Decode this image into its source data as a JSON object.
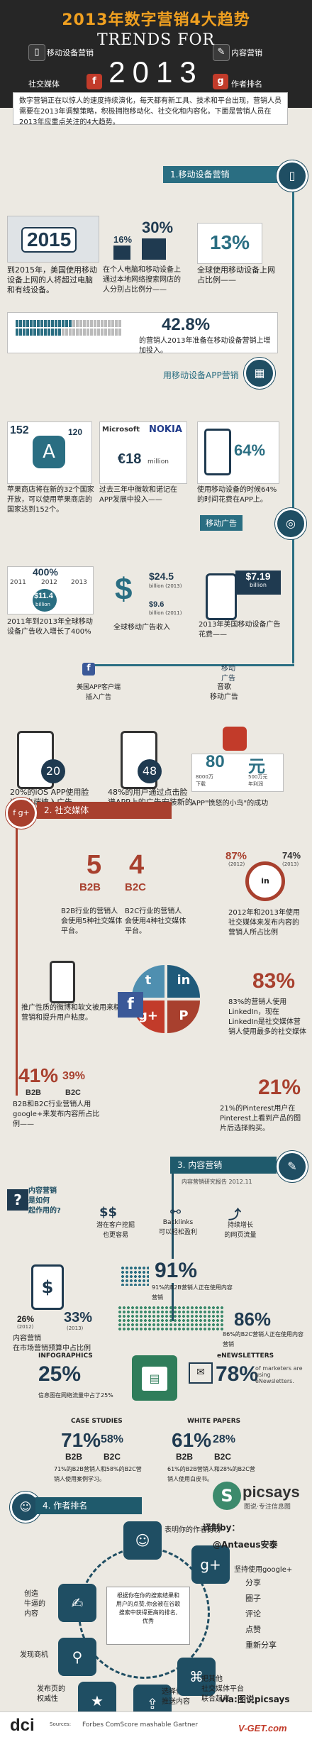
{
  "header": {
    "title_cn": "2013年数字营销4大趋势",
    "title_en": "TRENDS FOR",
    "year": "2013",
    "legend": {
      "mobile": "移动设备营销",
      "content": "内容营销",
      "social": "社交媒体",
      "author": "作者排名"
    }
  },
  "intro": "数字营销正在以惊人的速度持续演化，每天都有新工具、技术和平台出现，营销人员需要在2013年调整策略，积极拥抱移动化、社交化和内容化。下面是营销人员在2013年应重点关注的4大趋势。",
  "section1": {
    "bar": "1.移动设备营销",
    "stat_2015": "2015",
    "cap_2015": "到2015年，美国使用移动设备上网的人将超过电脑和有线设备。",
    "pct16": "16%",
    "pct30": "30%",
    "cap_30": "在个人电脑和移动设备上通过本地网络搜索网店的人分别占比例分——",
    "pct13": "13%",
    "cap_13": "全球使用移动设备上网占比例——",
    "pct428": "42.8%",
    "cap_428": "的营销人2013年准备在移动设备营销上增加投入。",
    "app_bar": "用移动设备APP营销",
    "apple_152": "152",
    "apple_120": "120",
    "cap_apple": "苹果商店将在新的32个国家开放，可以使用苹果商店的国家达到152个。",
    "ms": "Microsoft",
    "nokia": "NOKIA",
    "ms_value": "€18",
    "ms_unit": "million",
    "cap_ms": "过去三年中微软和诺记在APP发展中投入——",
    "pct64": "64%",
    "cap_64": "使用移动设备的时候64%的时间花费在APP上。",
    "ad_bar": "移动广告",
    "pct400": "400%",
    "y2011": "2011",
    "y2012": "2012",
    "y2013": "2013",
    "ad_val": "$11.4",
    "ad_unit": "billion",
    "cap_400": "2011年到2013年全球移动设备广告收入增长了400%",
    "usd_245": "$24.5",
    "usd_245_note": "billion (2013)",
    "usd_96": "$9.6",
    "usd_96_note": "billion (2011)",
    "cap_usd": "全球移动广告收入",
    "usd_719": "$7.19",
    "usd_719_unit": "billion",
    "cap_719": "2013年美国移动设备广告花费——",
    "ad_label": "移动\n广告",
    "ad_sub": "音歌\n移动广告",
    "fb_cap": "美国APP客户端\n插入广告",
    "pct20": "20",
    "cap_20": "20%的iOS APP使用脸谱客户端植入广告。",
    "pct48": "48",
    "cap_48": "48%的用户通过点击脸谱APP上的广告安装新的APP。",
    "angry_80": "80",
    "angry_80_unit": "8000万\n下载",
    "angry_yuan": "元",
    "angry_yuan_unit": "500万元\n年利润",
    "cap_angry": "APP\"愤怒的小鸟\"的成功"
  },
  "section2": {
    "bar": "2. 社交媒体",
    "b2b_num": "5",
    "b2c_num": "4",
    "b2b": "B2B",
    "b2c": "B2C",
    "cap_b2b": "B2B行业的营销人会使用5种社交媒体平台。",
    "cap_b2c": "B2C行业的营销人会使用4种社交媒体平台。",
    "pct87": "87%",
    "y2012": "(2012)",
    "pct74": "74%",
    "y2013": "(2013)",
    "cap_87": "2012年和2013年使用社交媒体来发布内容的营销人所占比例",
    "cap_push": "推广性质的微博和软文被用来精准营销和提升用户粘度。",
    "pct83": "83%",
    "cap_83": "83%的营销人使用LinkedIn，现在LinkedIn是社交媒体营销人使用最多的社交媒体",
    "pct41": "41%",
    "pct39": "39%",
    "cap_41": "B2B和B2C行业营销人用google+来发布内容所占比例——",
    "pct21": "21%",
    "cap_21": "21%的Pinterest用户在Pinterest上看到产品的图片后选择购买。"
  },
  "section3": {
    "bar": "3. 内容营销",
    "note": "内容营销研究报告 2012.11",
    "q": "内容营销\n是如何\n起作用的?",
    "c1": "潜在客户挖掘\n也更容易",
    "c2": "Backlinks\n可以轻松盈利",
    "c3": "持续增长\n的网页流量",
    "pct91": "91%",
    "cap_91": "91%的B2B营销人正在使用内容营销",
    "pct86": "86%",
    "cap_86": "86%的B2C营销人正在使用内容营销",
    "pct26": "26%",
    "pct33": "33%",
    "y2012": "(2012)",
    "y2013": "(2013)",
    "cap_26": "内容营销\n在市场营销预算中占比例",
    "infographics": "INFOGRAPHICS",
    "pct25": "25%",
    "cap_25": "信息图在网络流量中占了25%",
    "enews": "eNEWSLETTERS",
    "pct78": "78%",
    "cap_78": "of marketers are using eNewsletters.",
    "case": "CASE STUDIES",
    "pct71": "71%",
    "pct58": "58%",
    "cap_71": "71%的B2B营销人和58%的B2C营销人使用案例学习。",
    "white": "WHITE PAPERS",
    "pct61": "61%",
    "pct28": "28%",
    "cap_61": "61%的B2B营销人和28%的B2C营销人使用白皮书。"
  },
  "section4": {
    "bar": "4. 作者排名",
    "brand": "picsays",
    "brand_sub": "图说·专注信息图",
    "t1": "表明你的作者身份",
    "t2": "坚持使用google+",
    "left1": "创造\n牛逼的\n内容",
    "left2": "发现商机",
    "left3": "发布页的\n权威性",
    "center": "根据你在你的搜索结果和\n用户的点赞,你会被在谷歌\n搜索中获得更高的排名,\n优秀",
    "b1": "选择性\n推送内容",
    "b2": "把其他\n社交媒体平台\n联合起来",
    "credit_label": "译制by：",
    "credit_name": "@Antaeus安泰",
    "via": "via:图说picsays",
    "opts": [
      "分享",
      "圈子",
      "评论",
      "点赞",
      "重新分享"
    ]
  },
  "footer": {
    "logo": "dci",
    "sources": "Sources:",
    "brands": "Forbes  ComScore  mashable  Gartner",
    "watermark": "V-GET.com"
  },
  "colors": {
    "teal": "#2a6e82",
    "dark": "#1f4e63",
    "red": "#a8402e",
    "orange": "#f0a020"
  }
}
